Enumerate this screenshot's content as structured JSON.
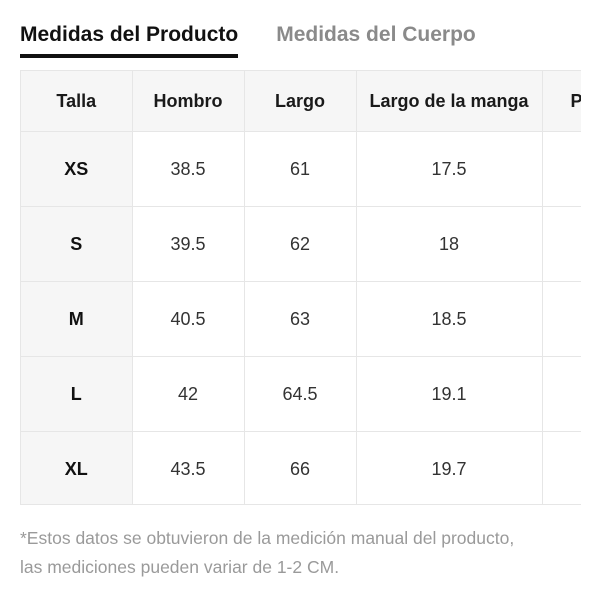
{
  "tabs": [
    {
      "label": "Medidas del Producto",
      "active": true
    },
    {
      "label": "Medidas del Cuerpo",
      "active": false
    }
  ],
  "table": {
    "headers": [
      "Talla",
      "Hombro",
      "Largo",
      "Largo de la manga",
      "P"
    ],
    "rows": [
      {
        "size": "XS",
        "hombro": "38.5",
        "largo": "61",
        "manga": "17.5"
      },
      {
        "size": "S",
        "hombro": "39.5",
        "largo": "62",
        "manga": "18"
      },
      {
        "size": "M",
        "hombro": "40.5",
        "largo": "63",
        "manga": "18.5"
      },
      {
        "size": "L",
        "hombro": "42",
        "largo": "64.5",
        "manga": "19.1"
      },
      {
        "size": "XL",
        "hombro": "43.5",
        "largo": "66",
        "manga": "19.7"
      }
    ]
  },
  "note": {
    "line1": "*Estos datos se obtuvieron de la medición manual del producto,",
    "line2": "las mediciones pueden variar de 1-2 CM."
  },
  "colors": {
    "active_tab": "#111111",
    "inactive_tab": "#8a8a8a",
    "header_bg": "#f6f6f6",
    "border": "#e6e6e6",
    "note_text": "#9a9a9a"
  }
}
